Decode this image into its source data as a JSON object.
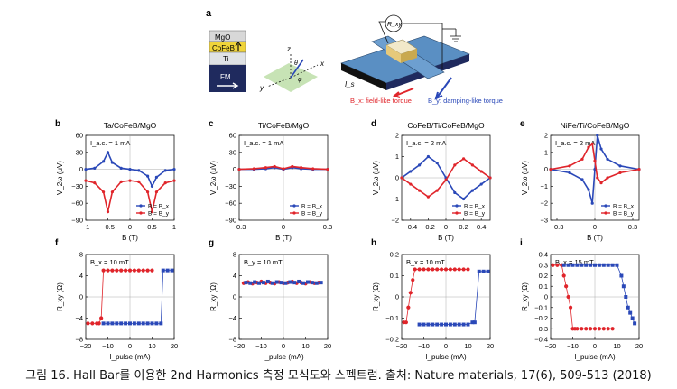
{
  "caption": "그림 16. Hall Bar를 이용한 2nd Harmonics 측정 모식도와 스펙트럼. 출처: Nature materials, 17(6), 509-513 (2018)",
  "colors": {
    "red": "#e0252b",
    "blue": "#2a48b8",
    "mgo": "#d8d8d8",
    "cofeb": "#f0d43a",
    "ti": "#dfe2e6",
    "fm": "#1f2a5e",
    "plane": "#b9dca3",
    "bar": "#5a8fc3",
    "pad": "#e6c97a"
  },
  "schematic": {
    "panel": "a",
    "stack": [
      "MgO",
      "CoFeB",
      "Ti",
      "FM"
    ],
    "axes": [
      "x",
      "y",
      "z",
      "θ",
      "φ"
    ],
    "resistance": "R_xy",
    "current": "I_s",
    "bx_label": "B_x: field-like torque",
    "by_label": "B_y: damping-like torque"
  },
  "chart_data": [
    {
      "id": "b",
      "type": "line",
      "title": "Ta/CoFeB/MgO",
      "annotation": "I_a.c. = 1 mA",
      "xlabel": "B (T)",
      "ylabel": "V_2ω (μV)",
      "xlim": [
        -1.0,
        1.0
      ],
      "ylim": [
        -90,
        60
      ],
      "xticks": [
        -1.0,
        -0.5,
        0,
        0.5,
        1.0
      ],
      "yticks": [
        60,
        30,
        0,
        -30,
        -60,
        -90
      ],
      "legend": [
        "B = B_x",
        "B = B_y"
      ],
      "series": [
        {
          "name": "B = B_x",
          "color": "blue",
          "x": [
            -1.0,
            -0.8,
            -0.6,
            -0.5,
            -0.4,
            -0.2,
            0,
            0.2,
            0.4,
            0.5,
            0.6,
            0.8,
            1.0
          ],
          "y": [
            0,
            2,
            14,
            30,
            12,
            2,
            0,
            -2,
            -12,
            -30,
            -14,
            -2,
            0
          ]
        },
        {
          "name": "B = B_y",
          "color": "red",
          "x": [
            -1.0,
            -0.8,
            -0.6,
            -0.5,
            -0.4,
            -0.2,
            0,
            0.2,
            0.4,
            0.5,
            0.6,
            0.8,
            1.0
          ],
          "y": [
            -20,
            -24,
            -40,
            -75,
            -40,
            -22,
            -20,
            -22,
            -40,
            -75,
            -40,
            -24,
            -20
          ]
        }
      ]
    },
    {
      "id": "c",
      "type": "line",
      "title": "Ti/CoFeB/MgO",
      "annotation": "I_a.c. = 1 mA",
      "xlabel": "B (T)",
      "ylabel": "V_2ω (μV)",
      "xlim": [
        -0.3,
        0.3
      ],
      "ylim": [
        -90,
        60
      ],
      "xticks": [
        -0.3,
        0,
        0.3
      ],
      "yticks": [
        60,
        30,
        0,
        -30,
        -60,
        -90
      ],
      "legend": [
        "B = B_x",
        "B = B_y"
      ],
      "series": [
        {
          "name": "B = B_x",
          "color": "blue",
          "x": [
            -0.3,
            -0.2,
            -0.12,
            -0.06,
            0,
            0.06,
            0.12,
            0.2,
            0.3
          ],
          "y": [
            0,
            0,
            1,
            3,
            0,
            3,
            1,
            0,
            0
          ]
        },
        {
          "name": "B = B_y",
          "color": "red",
          "x": [
            -0.3,
            -0.2,
            -0.12,
            -0.06,
            0,
            0.06,
            0.12,
            0.2,
            0.3
          ],
          "y": [
            0,
            1,
            3,
            5,
            1,
            5,
            3,
            1,
            0
          ]
        }
      ]
    },
    {
      "id": "d",
      "type": "line",
      "title": "CoFeB/Ti/CoFeB/MgO",
      "annotation": "I_a.c. = 2 mA",
      "xlabel": "B (T)",
      "ylabel": "V_2ω (μV)",
      "xlim": [
        -0.5,
        0.5
      ],
      "ylim": [
        -2,
        2
      ],
      "xticks": [
        -0.4,
        -0.2,
        0,
        0.2,
        0.4
      ],
      "yticks": [
        2,
        1,
        0,
        -1,
        -2
      ],
      "legend": [
        "B = B_x",
        "B = B_y"
      ],
      "series": [
        {
          "name": "B = B_x",
          "color": "blue",
          "x": [
            -0.5,
            -0.4,
            -0.3,
            -0.2,
            -0.1,
            0,
            0.1,
            0.2,
            0.3,
            0.4,
            0.5
          ],
          "y": [
            0,
            0.3,
            0.6,
            1.0,
            0.7,
            0,
            -0.7,
            -1.0,
            -0.6,
            -0.3,
            0
          ]
        },
        {
          "name": "B = B_y",
          "color": "red",
          "x": [
            -0.5,
            -0.4,
            -0.3,
            -0.2,
            -0.1,
            0,
            0.1,
            0.2,
            0.3,
            0.4,
            0.5
          ],
          "y": [
            0,
            -0.3,
            -0.6,
            -0.9,
            -0.6,
            -0.1,
            0.6,
            0.9,
            0.6,
            0.3,
            0
          ]
        }
      ]
    },
    {
      "id": "e",
      "type": "line",
      "title": "NiFe/Ti/CoFeB/MgO",
      "annotation": "I_a.c. = 2 mA",
      "xlabel": "B (T)",
      "ylabel": "V_2ω (μV)",
      "xlim": [
        -0.35,
        0.35
      ],
      "ylim": [
        -3,
        2
      ],
      "xticks": [
        -0.3,
        0,
        0.3
      ],
      "yticks": [
        2,
        1,
        0,
        -1,
        -2,
        -3
      ],
      "legend": [
        "B = B_x",
        "B = B_y"
      ],
      "series": [
        {
          "name": "B = B_x",
          "color": "blue",
          "x": [
            -0.35,
            -0.2,
            -0.1,
            -0.05,
            -0.02,
            0,
            0.02,
            0.05,
            0.1,
            0.2,
            0.35
          ],
          "y": [
            0,
            -0.2,
            -0.6,
            -1.2,
            -2.0,
            0,
            2.0,
            1.2,
            0.6,
            0.2,
            0
          ]
        },
        {
          "name": "B = B_y",
          "color": "red",
          "x": [
            -0.35,
            -0.2,
            -0.1,
            -0.05,
            -0.02,
            0,
            0.02,
            0.05,
            0.1,
            0.2,
            0.35
          ],
          "y": [
            0,
            0.2,
            0.6,
            1.3,
            1.5,
            0.5,
            -0.5,
            -0.8,
            -0.5,
            -0.2,
            0
          ]
        }
      ]
    },
    {
      "id": "f",
      "type": "scatter",
      "annotation": "B_x = 10 mT",
      "xlabel": "I_pulse (mA)",
      "ylabel": "R_xy (Ω)",
      "xlim": [
        -20,
        20
      ],
      "ylim": [
        -8,
        8
      ],
      "xticks": [
        -20,
        -10,
        0,
        10,
        20
      ],
      "yticks": [
        8,
        4,
        0,
        -4,
        -8
      ],
      "series": [
        {
          "name": "",
          "color": "red",
          "x": [
            -19,
            -17,
            -15,
            -14,
            -13,
            -12,
            -10,
            -8,
            -6,
            -4,
            -2,
            0,
            2,
            4,
            6,
            8,
            10
          ],
          "y": [
            -5,
            -5,
            -5,
            -5,
            -4,
            5,
            5,
            5,
            5,
            5,
            5,
            5,
            5,
            5,
            5,
            5,
            5
          ]
        },
        {
          "name": "",
          "color": "blue",
          "x": [
            -12,
            -10,
            -8,
            -6,
            -4,
            -2,
            0,
            2,
            4,
            6,
            8,
            10,
            12,
            14,
            15,
            17,
            19
          ],
          "y": [
            -5,
            -5,
            -5,
            -5,
            -5,
            -5,
            -5,
            -5,
            -5,
            -5,
            -5,
            -5,
            -5,
            -5,
            5,
            5,
            5
          ]
        }
      ]
    },
    {
      "id": "g",
      "type": "scatter",
      "annotation": "B_y = 10 mT",
      "xlabel": "I_pulse (mA)",
      "ylabel": "R_xy (Ω)",
      "xlim": [
        -20,
        20
      ],
      "ylim": [
        -8,
        8
      ],
      "xticks": [
        -20,
        -10,
        0,
        10,
        20
      ],
      "yticks": [
        8,
        4,
        0,
        -4,
        -8
      ],
      "series": [
        {
          "name": "",
          "color": "red",
          "x": [
            -18,
            -16,
            -14,
            -12,
            -10,
            -8,
            -6,
            -4,
            -2,
            0,
            2,
            4,
            6,
            8,
            10,
            12,
            14,
            16
          ],
          "y": [
            2.6,
            2.8,
            2.5,
            2.7,
            2.9,
            2.6,
            2.7,
            2.5,
            2.8,
            2.6,
            2.7,
            2.9,
            2.6,
            2.7,
            2.5,
            2.8,
            2.6,
            2.7
          ]
        },
        {
          "name": "",
          "color": "blue",
          "x": [
            -17,
            -15,
            -13,
            -11,
            -9,
            -7,
            -5,
            -3,
            -1,
            1,
            3,
            5,
            7,
            9,
            11,
            13,
            15,
            17
          ],
          "y": [
            2.7,
            2.6,
            2.8,
            2.6,
            2.7,
            2.9,
            2.6,
            2.8,
            2.7,
            2.6,
            2.8,
            2.7,
            2.9,
            2.6,
            2.8,
            2.7,
            2.6,
            2.7
          ]
        }
      ]
    },
    {
      "id": "h",
      "type": "scatter",
      "annotation": "B_x = 10 mT",
      "xlabel": "I_pulse (mA)",
      "ylabel": "R_xy (Ω)",
      "xlim": [
        -20,
        20
      ],
      "ylim": [
        -0.2,
        0.2
      ],
      "xticks": [
        -20,
        -10,
        0,
        10,
        20
      ],
      "yticks": [
        0.2,
        0.1,
        0,
        -0.1,
        -0.2
      ],
      "series": [
        {
          "name": "",
          "color": "red",
          "x": [
            -19,
            -18,
            -17,
            -16,
            -15,
            -14,
            -12,
            -10,
            -8,
            -6,
            -4,
            -2,
            0,
            2,
            4,
            6,
            8,
            10
          ],
          "y": [
            -0.12,
            -0.12,
            -0.05,
            0.02,
            0.08,
            0.13,
            0.13,
            0.13,
            0.13,
            0.13,
            0.13,
            0.13,
            0.13,
            0.13,
            0.13,
            0.13,
            0.13,
            0.13
          ]
        },
        {
          "name": "",
          "color": "blue",
          "x": [
            -12,
            -10,
            -8,
            -6,
            -4,
            -2,
            0,
            2,
            4,
            6,
            8,
            10,
            12,
            13,
            15,
            17,
            19
          ],
          "y": [
            -0.13,
            -0.13,
            -0.13,
            -0.13,
            -0.13,
            -0.13,
            -0.13,
            -0.13,
            -0.13,
            -0.13,
            -0.13,
            -0.13,
            -0.12,
            -0.12,
            0.12,
            0.12,
            0.12
          ]
        }
      ]
    },
    {
      "id": "i",
      "type": "scatter",
      "annotation": "B_x = 15 mT",
      "xlabel": "I_pulse (mA)",
      "ylabel": "R_xy (Ω)",
      "xlim": [
        -20,
        20
      ],
      "ylim": [
        -0.4,
        0.4
      ],
      "xticks": [
        -20,
        -10,
        0,
        10,
        20
      ],
      "yticks": [
        0.4,
        0.3,
        0.2,
        0.1,
        0,
        -0.1,
        -0.2,
        -0.3,
        -0.4
      ],
      "series": [
        {
          "name": "",
          "color": "red",
          "x": [
            -19,
            -17,
            -15,
            -14,
            -13,
            -12,
            -11,
            -10,
            -9,
            -8,
            -6,
            -4,
            -2,
            0,
            2,
            4,
            6,
            8
          ],
          "y": [
            0.3,
            0.3,
            0.3,
            0.2,
            0.1,
            0,
            -0.1,
            -0.3,
            -0.3,
            -0.3,
            -0.3,
            -0.3,
            -0.3,
            -0.3,
            -0.3,
            -0.3,
            -0.3,
            -0.3
          ]
        },
        {
          "name": "",
          "color": "blue",
          "x": [
            -14,
            -12,
            -10,
            -8,
            -6,
            -4,
            -2,
            0,
            2,
            4,
            6,
            8,
            10,
            12,
            13,
            14,
            15,
            16,
            17,
            18
          ],
          "y": [
            0.3,
            0.3,
            0.3,
            0.3,
            0.3,
            0.3,
            0.3,
            0.3,
            0.3,
            0.3,
            0.3,
            0.3,
            0.3,
            0.2,
            0.1,
            0,
            -0.1,
            -0.15,
            -0.2,
            -0.25
          ]
        }
      ]
    }
  ]
}
